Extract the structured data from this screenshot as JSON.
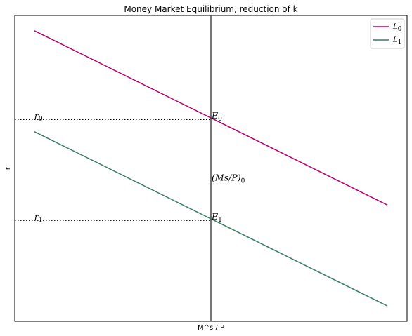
{
  "chart_data": {
    "type": "line",
    "title": "Money Market Equilibrium, reduction of k",
    "xlabel": "M^s / P",
    "ylabel": "r",
    "xlim": [
      0,
      10
    ],
    "ylim": [
      0,
      10
    ],
    "grid": false,
    "legend_position": "top-right",
    "series": [
      {
        "name": "L",
        "subscript": "0",
        "color": "#b5006e",
        "x": [
          0.5,
          9.5
        ],
        "y": [
          9.5,
          3.8
        ]
      },
      {
        "name": "L",
        "subscript": "1",
        "color": "#3a7d60",
        "x": [
          0.5,
          9.5
        ],
        "y": [
          6.2,
          0.5
        ]
      }
    ],
    "money_supply": {
      "x": 5.0,
      "label": "(Ms/P)",
      "subscript": "0",
      "label_y": 4.6,
      "color": "#555555"
    },
    "equilibria": [
      {
        "label": "E",
        "subscript": "0",
        "x": 5.0,
        "y": 6.6,
        "r_label": "r",
        "r_subscript": "0"
      },
      {
        "label": "E",
        "subscript": "1",
        "x": 5.0,
        "y": 3.3,
        "r_label": "r",
        "r_subscript": "1"
      }
    ]
  }
}
